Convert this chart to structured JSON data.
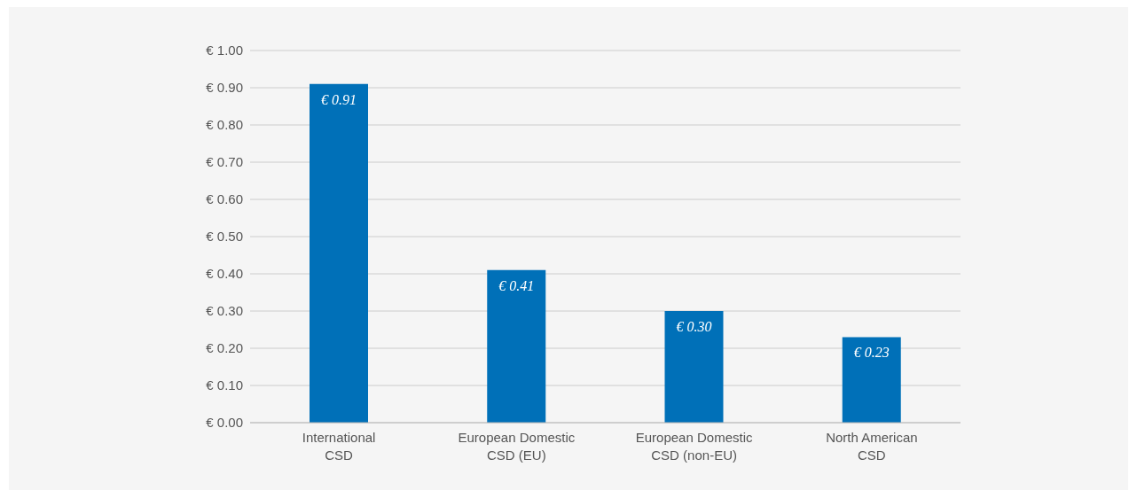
{
  "chart_data": {
    "type": "bar",
    "categories": [
      "International\nCSD",
      "European Domestic\nCSD (EU)",
      "European Domestic\nCSD (non-EU)",
      "North American\nCSD"
    ],
    "values": [
      0.91,
      0.41,
      0.3,
      0.23
    ],
    "value_labels": [
      "€ 0.91",
      "€ 0.41",
      "€ 0.30",
      "€ 0.23"
    ],
    "color": "#0070b8",
    "ylim": [
      0,
      1
    ],
    "yticks": [
      {
        "value": 0,
        "label": "€ 0.00"
      },
      {
        "value": 0.1,
        "label": "€ 0.10"
      },
      {
        "value": 0.2,
        "label": "€ 0.20"
      },
      {
        "value": 0.3,
        "label": "€ 0.30"
      },
      {
        "value": 0.4,
        "label": "€ 0.40"
      },
      {
        "value": 0.5,
        "label": "€ 0.50"
      },
      {
        "value": 0.6,
        "label": "€ 0.60"
      },
      {
        "value": 0.7,
        "label": "€ 0.70"
      },
      {
        "value": 0.8,
        "label": "€ 0.80"
      },
      {
        "value": 0.9,
        "label": "€ 0.90"
      },
      {
        "value": 1,
        "label": "€ 1.00"
      }
    ],
    "grid": "y"
  }
}
